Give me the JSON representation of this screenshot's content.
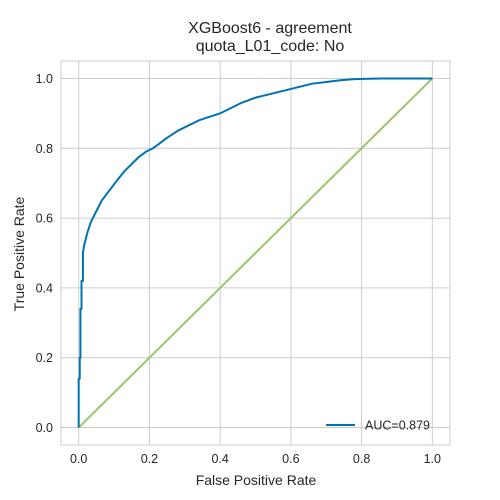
{
  "chart_data": {
    "type": "line",
    "title_line1": "XGBoost6 - agreement",
    "title_line2": "quota_L01_code: No",
    "xlabel": "False Positive Rate",
    "ylabel": "True Positive Rate",
    "xlim": [
      -0.05,
      1.05
    ],
    "ylim": [
      -0.05,
      1.05
    ],
    "xticks": [
      0.0,
      0.2,
      0.4,
      0.6,
      0.8,
      1.0
    ],
    "yticks": [
      0.0,
      0.2,
      0.4,
      0.6,
      0.8,
      1.0
    ],
    "xtick_labels": [
      "0.0",
      "0.2",
      "0.4",
      "0.6",
      "0.8",
      "1.0"
    ],
    "ytick_labels": [
      "0.0",
      "0.2",
      "0.4",
      "0.6",
      "0.8",
      "1.0"
    ],
    "grid": true,
    "legend_position": "lower-right",
    "series": [
      {
        "name": "AUC=0.879",
        "color": "#0072B2",
        "x": [
          0.0,
          0.0,
          0.003,
          0.003,
          0.005,
          0.005,
          0.008,
          0.008,
          0.012,
          0.012,
          0.015,
          0.02,
          0.025,
          0.035,
          0.045,
          0.055,
          0.065,
          0.08,
          0.095,
          0.11,
          0.13,
          0.15,
          0.17,
          0.19,
          0.21,
          0.23,
          0.25,
          0.28,
          0.31,
          0.34,
          0.37,
          0.4,
          0.43,
          0.46,
          0.5,
          0.54,
          0.58,
          0.62,
          0.66,
          0.7,
          0.74,
          0.78,
          0.82,
          0.86,
          0.9,
          0.95,
          1.0
        ],
        "y": [
          0.0,
          0.14,
          0.14,
          0.2,
          0.2,
          0.34,
          0.34,
          0.42,
          0.42,
          0.5,
          0.52,
          0.54,
          0.56,
          0.59,
          0.61,
          0.63,
          0.65,
          0.67,
          0.69,
          0.71,
          0.735,
          0.755,
          0.775,
          0.79,
          0.8,
          0.815,
          0.83,
          0.85,
          0.865,
          0.88,
          0.89,
          0.9,
          0.915,
          0.93,
          0.945,
          0.955,
          0.965,
          0.975,
          0.985,
          0.99,
          0.995,
          0.998,
          0.999,
          1.0,
          1.0,
          1.0,
          1.0
        ]
      },
      {
        "name": "",
        "color": "#96C56B",
        "x": [
          0.0,
          1.0
        ],
        "y": [
          0.0,
          1.0
        ]
      }
    ]
  }
}
